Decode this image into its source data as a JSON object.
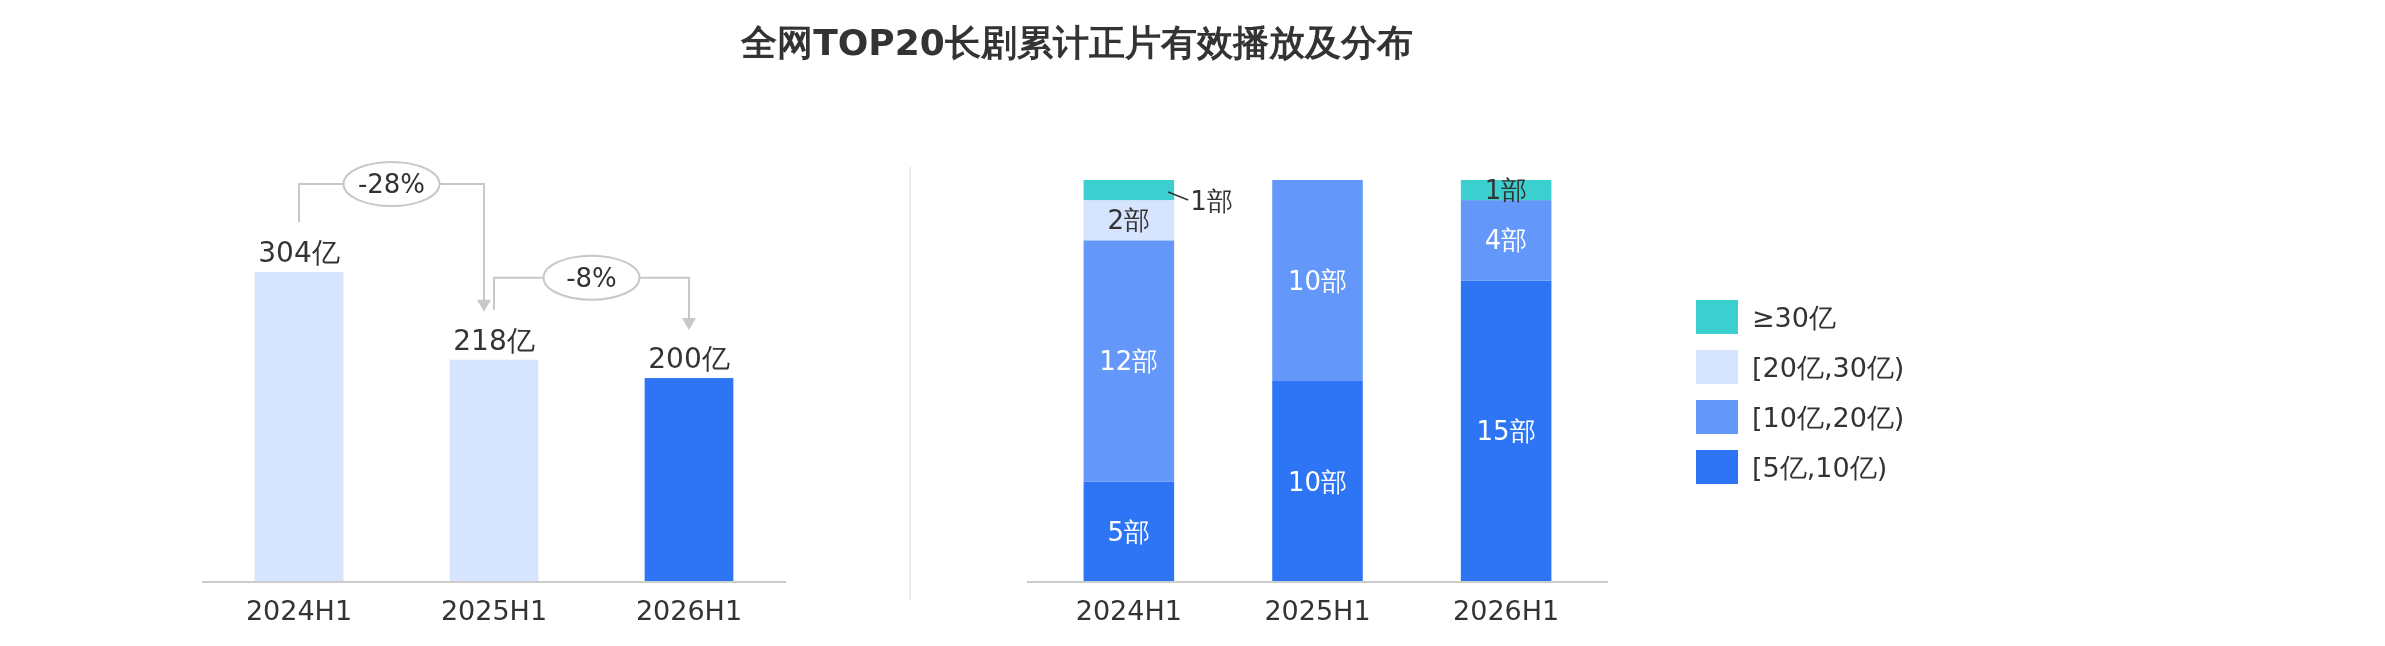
{
  "chart_data": [
    {
      "type": "bar",
      "categories": [
        "2024H1",
        "2025H1",
        "2026H1"
      ],
      "values": [
        304,
        218,
        200
      ],
      "colors": [
        "#d6e4fd",
        "#d6e4fd",
        "#2e75f6"
      ],
      "value_labels": [
        "304亿",
        "218亿",
        "200亿"
      ],
      "annotations": [
        "-28%",
        "-8%"
      ]
    },
    {
      "type": "bar",
      "stacked": true,
      "title": "全网TOP20长剧累计正片有效播放及分布",
      "categories": [
        "2024H1",
        "2025H1",
        "2026H1"
      ],
      "legend": "right",
      "series": [
        {
          "name": "[5亿,10亿)",
          "color": "#2e75f6",
          "values": [
            5,
            10,
            15
          ],
          "value_labels": [
            "5部",
            "10部",
            "15部"
          ]
        },
        {
          "name": "[10亿,20亿)",
          "color": "#6398fa",
          "values": [
            12,
            10,
            4
          ],
          "value_labels": [
            "12部",
            "10部",
            "4部"
          ]
        },
        {
          "name": "[20亿,30亿)",
          "color": "#d6e4fd",
          "values": [
            2,
            0,
            0
          ],
          "value_labels": [
            "2部",
            null,
            null
          ]
        },
        {
          "name": "≥30亿",
          "color": "#3ccfcf",
          "values": [
            1,
            0,
            1
          ],
          "value_labels": [
            "1部",
            null,
            "1部"
          ]
        }
      ]
    }
  ]
}
